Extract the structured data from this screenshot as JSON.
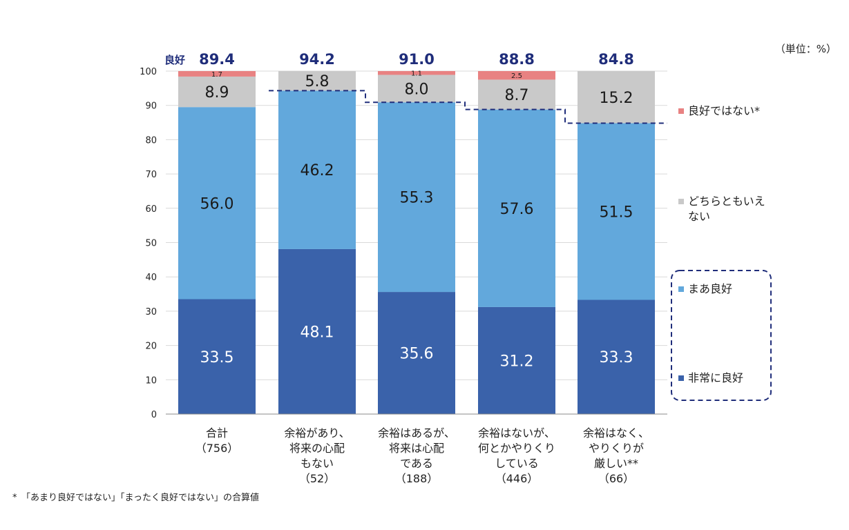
{
  "unit_label": "（単位：%）",
  "footnote": "*　「あまり良好ではない」「まったく良好ではない」の合算値",
  "good_label": "良好",
  "colors": {
    "very_good": "#3a62aa",
    "somewhat_good": "#62a8dc",
    "neither": "#c9c9c9",
    "not_good": "#e88282",
    "good_total_text": "#1f2d7a",
    "dashed_line": "#1f2d7a",
    "grid": "#d9d9d9"
  },
  "chart_data": {
    "type": "bar",
    "stacked": true,
    "ylim": [
      0,
      100
    ],
    "yticks": [
      0,
      10,
      20,
      30,
      40,
      50,
      60,
      70,
      80,
      90,
      100
    ],
    "grid": true,
    "legend_position": "right",
    "categories": [
      [
        "合計",
        "（756）"
      ],
      [
        "余裕があり、",
        "将来の心配",
        "もない",
        "（52）"
      ],
      [
        "余裕はあるが、",
        "将来は心配",
        "である",
        "（188）"
      ],
      [
        "余裕はないが、",
        "何とかやりくり",
        "している",
        "（446）"
      ],
      [
        "余裕はなく、",
        "やりくりが",
        "厳しい**",
        "（66）"
      ]
    ],
    "good_totals": [
      "89.4",
      "94.2",
      "91.0",
      "88.8",
      "84.8"
    ],
    "series": [
      {
        "key": "very_good",
        "name": "非常に良好",
        "values": [
          33.5,
          48.1,
          35.6,
          31.2,
          33.3
        ],
        "labels": [
          "33.5",
          "48.1",
          "35.6",
          "31.2",
          "33.3"
        ]
      },
      {
        "key": "somewhat_good",
        "name": "まあ良好",
        "values": [
          56.0,
          46.2,
          55.3,
          57.6,
          51.5
        ],
        "labels": [
          "56.0",
          "46.2",
          "55.3",
          "57.6",
          "51.5"
        ]
      },
      {
        "key": "neither",
        "name": [
          "どちらともいえ",
          "ない"
        ],
        "values": [
          8.9,
          5.8,
          8.0,
          8.7,
          15.2
        ],
        "labels": [
          "8.9",
          "5.8",
          "8.0",
          "8.7",
          "15.2"
        ]
      },
      {
        "key": "not_good",
        "name": "良好ではない*",
        "values": [
          1.7,
          0,
          1.1,
          2.5,
          0
        ],
        "labels": [
          "1.7",
          "",
          "1.1",
          "2.5",
          ""
        ]
      }
    ]
  }
}
